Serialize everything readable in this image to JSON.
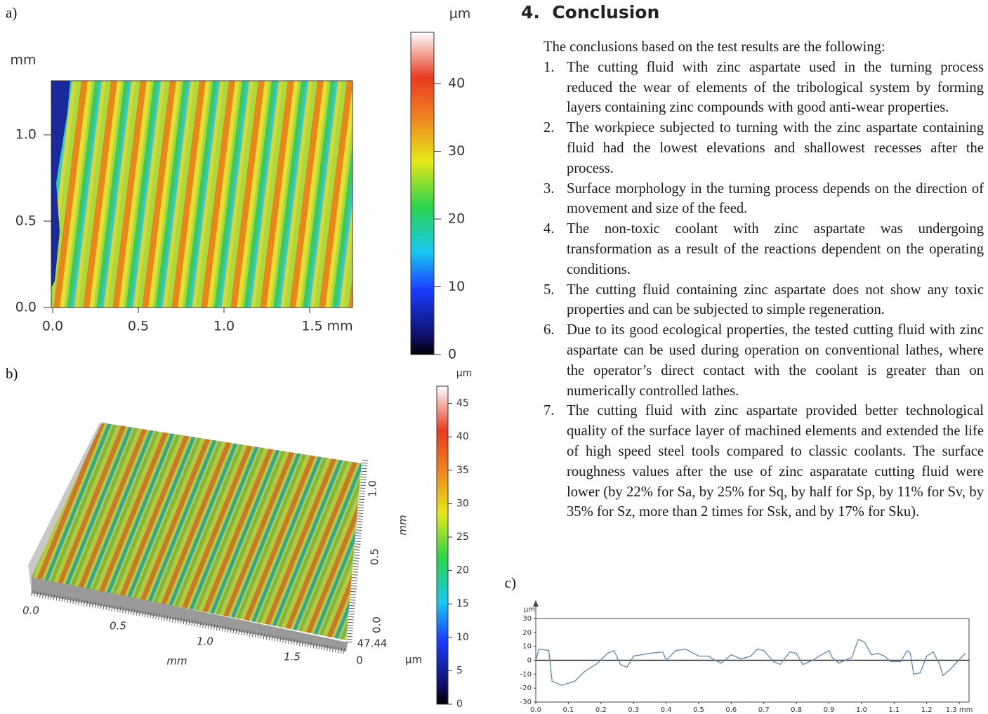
{
  "figure_a": {
    "label": "a)",
    "unit": "µm",
    "y_axis_unit": "mm",
    "x_ticks": [
      "0.0",
      "0.5",
      "1.0",
      "1.5 mm"
    ],
    "y_ticks": [
      "0.0",
      "0.5",
      "1.0"
    ],
    "colorbar_ticks": [
      "0",
      "10",
      "20",
      "30",
      "40"
    ]
  },
  "figure_b": {
    "label": "b)",
    "unit": "µm",
    "x_ticks": [
      "0.0",
      "0.5",
      "1.0",
      "1.5"
    ],
    "x_axis_unit": "mm",
    "y_ticks": [
      "0.0",
      "0.5",
      "1.0"
    ],
    "y_axis_unit": "mm",
    "z_ticks": [
      "47.44",
      "0"
    ],
    "z_unit": "µm",
    "colorbar_ticks": [
      "0",
      "5",
      "10",
      "15",
      "20",
      "25",
      "30",
      "35",
      "40",
      "45"
    ]
  },
  "section": {
    "number": "4.",
    "title": "Conclusion",
    "intro": "The conclusions based on the test results are the following:",
    "items": [
      {
        "number": "1.",
        "text": "The cutting fluid with zinc aspartate used in the turning process reduced the wear of elements of the tribological system by forming layers containing zinc compounds with good anti-wear properties."
      },
      {
        "number": "2.",
        "text": "The workpiece subjected to turning with the zinc aspartate containing fluid had the lowest elevations and shallowest recesses after the process."
      },
      {
        "number": "3.",
        "text": "Surface morphology in the turning process depends on the direction of movement and size of the feed."
      },
      {
        "number": "4.",
        "text": "The non-toxic coolant with zinc aspartate was undergoing transformation as a result of the reactions dependent on the operating conditions."
      },
      {
        "number": "5.",
        "text": "The cutting fluid containing zinc aspartate does not show any toxic properties and can be subjected to simple regeneration."
      },
      {
        "number": "6.",
        "text": "Due to its good ecological properties, the tested cutting fluid with zinc aspartate can be used during operation on conventional lathes, where the operator’s direct contact with the coolant is greater than on numerically controlled lathes."
      },
      {
        "number": "7.",
        "text": "The cutting fluid with zinc aspartate provided better technological quality of the surface layer of machined elements and extended the life of high speed steel tools compared to classic coolants. The surface roughness values after the use of zinc asparatate cutting fluid were lower (by 22% for Sa, by 25% for Sq, by half for Sp, by 11% for Sv, by 35% for Sz, more than 2 times for Ssk, and by 17% for Sku)."
      }
    ]
  },
  "figure_c": {
    "type": "line",
    "label": "c)",
    "y_unit": "µm",
    "xlim": [
      0,
      1.33
    ],
    "ylim": [
      -30,
      30
    ],
    "xticks": [
      {
        "value": 0,
        "label": "0.0"
      },
      {
        "value": 0.1,
        "label": "0.1"
      },
      {
        "value": 0.2,
        "label": "0.2"
      },
      {
        "value": 0.3,
        "label": "0.3"
      },
      {
        "value": 0.4,
        "label": "0.4"
      },
      {
        "value": 0.5,
        "label": "0.5"
      },
      {
        "value": 0.6,
        "label": "0.6"
      },
      {
        "value": 0.7,
        "label": "0.7"
      },
      {
        "value": 0.8,
        "label": "0.8"
      },
      {
        "value": 0.9,
        "label": "0.9"
      },
      {
        "value": 1,
        "label": "1.0"
      },
      {
        "value": 1.1,
        "label": "1.1"
      },
      {
        "value": 1.2,
        "label": "1.2"
      },
      {
        "value": 1.3,
        "label": "1.3 mm"
      }
    ],
    "yticks": [
      30,
      20,
      10,
      0,
      -10,
      -20,
      -30
    ],
    "color": "#5b87b8",
    "x": [
      0,
      0.01,
      0.04,
      0.05,
      0.08,
      0.12,
      0.15,
      0.19,
      0.22,
      0.24,
      0.26,
      0.28,
      0.3,
      0.35,
      0.39,
      0.4,
      0.43,
      0.46,
      0.5,
      0.53,
      0.55,
      0.57,
      0.6,
      0.63,
      0.66,
      0.68,
      0.7,
      0.73,
      0.75,
      0.78,
      0.8,
      0.82,
      0.85,
      0.87,
      0.9,
      0.91,
      0.93,
      0.95,
      0.97,
      0.99,
      1.01,
      1.03,
      1.05,
      1.07,
      1.09,
      1.12,
      1.14,
      1.15,
      1.16,
      1.18,
      1.2,
      1.22,
      1.24,
      1.25,
      1.27,
      1.29,
      1.31,
      1.32
    ],
    "values": [
      0,
      8,
      7,
      -15,
      -18,
      -15,
      -8,
      -2,
      5,
      7,
      -3,
      -5,
      3,
      5,
      6,
      0,
      7,
      8,
      3,
      3,
      0,
      -2,
      4,
      1,
      3,
      8,
      7,
      -1,
      -3,
      6,
      5,
      -3,
      0,
      3,
      7,
      2,
      -2,
      0,
      2,
      15,
      13,
      4,
      5,
      3,
      -1,
      -1,
      7,
      5,
      -10,
      -9,
      3,
      6,
      -3,
      -11,
      -7,
      -2,
      3,
      5
    ]
  }
}
